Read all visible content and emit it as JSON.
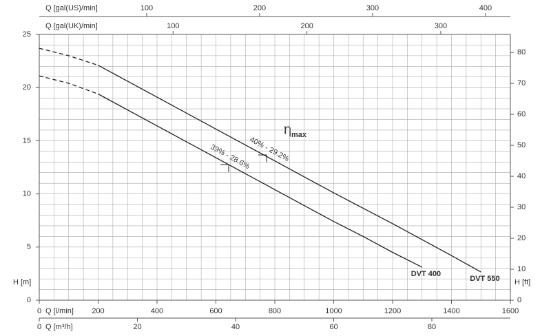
{
  "chart_data": {
    "type": "line",
    "xlabel": "Q [l/min]",
    "xlim": [
      0,
      1600
    ],
    "xticks": [
      0,
      200,
      400,
      600,
      800,
      1000,
      1200,
      1400,
      1600
    ],
    "ylabel": "H [m]",
    "ylim": [
      0,
      25
    ],
    "yticks": [
      0,
      5,
      10,
      15,
      20,
      25
    ],
    "y2label": "H [ft]",
    "y2lim": [
      0,
      85.8
    ],
    "y2ticks": [
      0,
      10,
      20,
      30,
      40,
      50,
      60,
      70,
      80
    ],
    "extra_x_axes": [
      {
        "label": "Q [gal(US)/min]",
        "lim": [
          4.9,
          422
        ],
        "ticks": [
          100,
          200,
          300,
          400
        ],
        "position": "top"
      },
      {
        "label": "Q [gal(UK)/min]",
        "lim": [
          0,
          352
        ],
        "ticks": [
          100,
          200,
          300
        ],
        "position": "top"
      },
      {
        "label": "Q [m³/h]",
        "lim": [
          0,
          96
        ],
        "ticks": [
          0,
          20,
          40,
          60,
          80
        ],
        "position": "bottom"
      }
    ],
    "grid": true,
    "series": [
      {
        "name": "DVT 550",
        "color": "#222222",
        "segments": [
          {
            "style": "dashed",
            "x": [
              0,
              100,
              200
            ],
            "values": [
              23.7,
              23.0,
              22.1
            ]
          },
          {
            "style": "solid",
            "x": [
              200,
              400,
              600,
              800,
              1000,
              1200,
              1400,
              1500
            ],
            "values": [
              22.1,
              19.1,
              16.1,
              13.1,
              10.1,
              7.2,
              4.2,
              2.65
            ]
          }
        ]
      },
      {
        "name": "DVT 400",
        "color": "#222222",
        "segments": [
          {
            "style": "dashed",
            "x": [
              0,
              100,
              200
            ],
            "values": [
              21.1,
              20.4,
              19.4
            ]
          },
          {
            "style": "solid",
            "x": [
              200,
              400,
              600,
              800,
              1000,
              1100,
              1200,
              1300
            ],
            "values": [
              19.4,
              16.4,
              13.4,
              10.4,
              7.4,
              6.0,
              4.5,
              3.1
            ]
          }
        ]
      }
    ],
    "annotations": {
      "eta": "η",
      "eta_sub": "max",
      "dvt550_eff": "40% - 29.2%",
      "dvt400_eff": "39% - 28.6%"
    }
  }
}
